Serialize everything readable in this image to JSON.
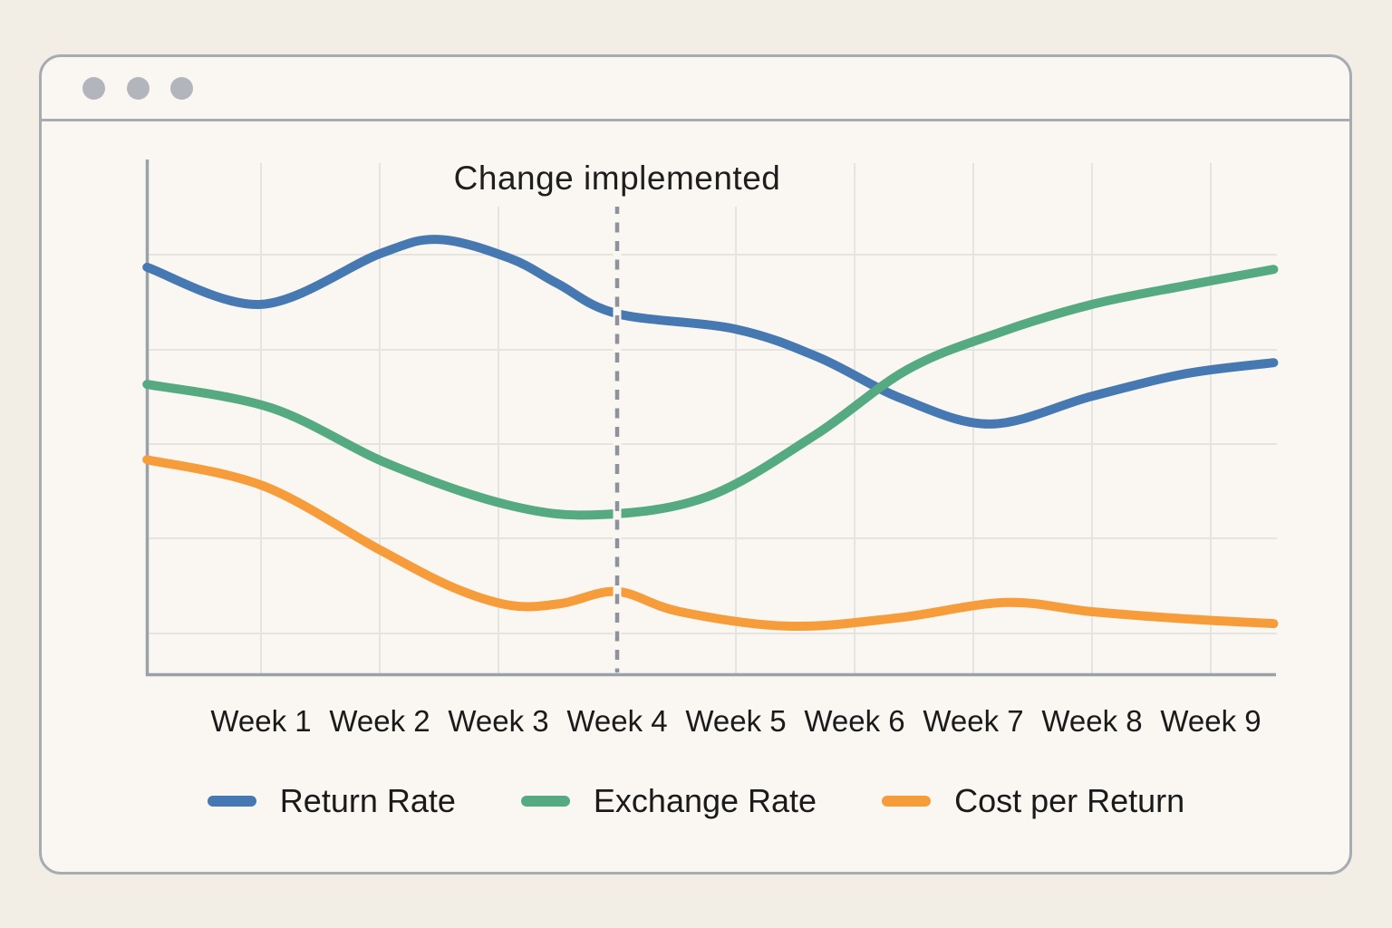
{
  "window": {
    "controls": [
      {
        "icon": "window-dot-icon"
      },
      {
        "icon": "window-dot-icon"
      },
      {
        "icon": "window-dot-icon"
      }
    ]
  },
  "colors": {
    "page_background": "#f3eee5",
    "window_background": "#faf7f2",
    "window_border": "#a7acb3",
    "axis": "#9aa1a9",
    "gridline": "#e6e4e0",
    "annotation_line": "#8d939c",
    "text": "#1a1a1a",
    "return_rate": "#4678b2",
    "exchange_rate": "#55aa81",
    "cost_per_return": "#f69c3a"
  },
  "chart_data": {
    "type": "line",
    "annotation": {
      "label": "Change implemented",
      "at_category": "Week 4",
      "style": "dashed-vertical-line"
    },
    "categories": [
      "Week 1",
      "Week 2",
      "Week 3",
      "Week 4",
      "Week 5",
      "Week 6",
      "Week 7",
      "Week 8",
      "Week 9"
    ],
    "x_axis": {
      "unit": "week",
      "tick_labels_visible": true
    },
    "y_axis": {
      "tick_labels_visible": false,
      "units": "relative (unlabeled)",
      "ylim": [
        0,
        100
      ]
    },
    "grid": true,
    "legend_position": "bottom",
    "series": [
      {
        "name": "Return Rate",
        "color": "#4678b2",
        "points": [
          [
            0.04,
            79.1
          ],
          [
            1.0,
            71.9
          ],
          [
            2.0,
            81.7
          ],
          [
            2.5,
            84.5
          ],
          [
            3.1,
            80.8
          ],
          [
            3.5,
            75.9
          ],
          [
            4.0,
            70.1
          ],
          [
            5.0,
            67.1
          ],
          [
            5.7,
            61.6
          ],
          [
            6.4,
            53.6
          ],
          [
            7.15,
            48.7
          ],
          [
            8.0,
            54.1
          ],
          [
            8.8,
            58.5
          ],
          [
            9.53,
            60.6
          ]
        ]
      },
      {
        "name": "Exchange Rate",
        "color": "#55aa81",
        "points": [
          [
            0.04,
            56.4
          ],
          [
            1.09,
            51.8
          ],
          [
            2.08,
            40.9
          ],
          [
            3.08,
            33.0
          ],
          [
            3.84,
            31.1
          ],
          [
            4.76,
            34.6
          ],
          [
            5.67,
            46.6
          ],
          [
            6.44,
            59.2
          ],
          [
            7.2,
            66.3
          ],
          [
            8.0,
            71.9
          ],
          [
            8.8,
            75.6
          ],
          [
            9.53,
            78.7
          ]
        ]
      },
      {
        "name": "Cost per Return",
        "color": "#f69c3a",
        "points": [
          [
            0.04,
            41.8
          ],
          [
            1.02,
            36.7
          ],
          [
            2.0,
            24.3
          ],
          [
            2.62,
            17.0
          ],
          [
            3.11,
            13.5
          ],
          [
            3.53,
            13.9
          ],
          [
            4.0,
            16.2
          ],
          [
            4.53,
            12.3
          ],
          [
            5.44,
            9.5
          ],
          [
            6.36,
            11.1
          ],
          [
            7.27,
            14.1
          ],
          [
            8.0,
            12.3
          ],
          [
            8.8,
            10.9
          ],
          [
            9.53,
            10.0
          ]
        ]
      }
    ]
  }
}
